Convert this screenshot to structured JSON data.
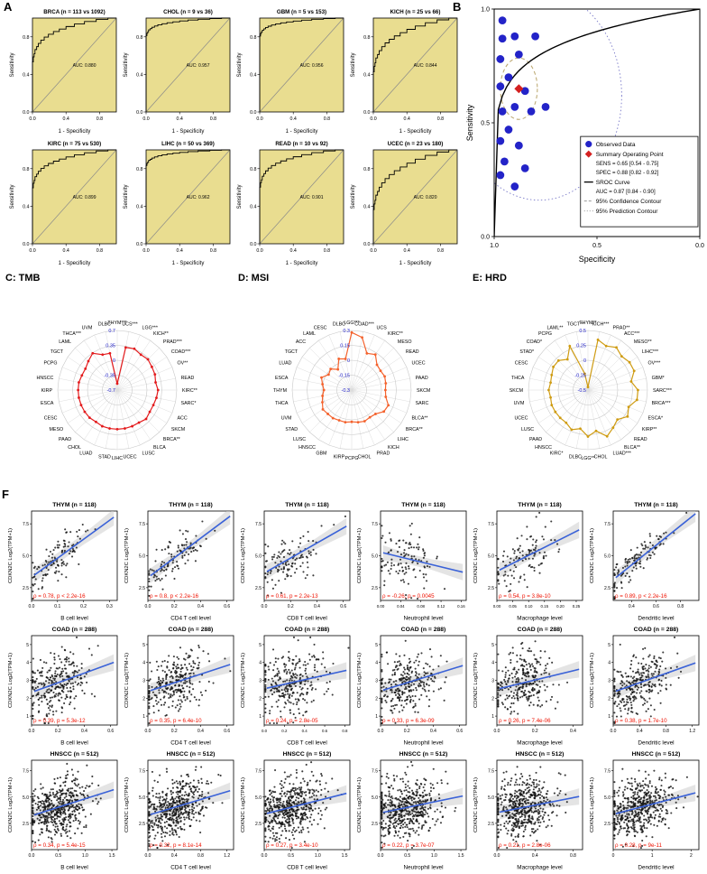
{
  "panels": {
    "a_label": "A",
    "b_label": "B",
    "f_label": "F",
    "c_title": "C: TMB",
    "d_title": "D: MSI",
    "e_title": "E: HRD"
  },
  "chart_data": [
    {
      "id": "roc_grid",
      "type": "line",
      "variant": "roc-grid",
      "xlabel": "1 - Specificity",
      "ylabel": "Sensitivity",
      "ticks": [
        0,
        0.4,
        0.8
      ],
      "tick_labels": [
        "0.0",
        "0.4",
        "0.8"
      ],
      "fill_color": "#e9dd90",
      "curve_color": "#000000",
      "plots": [
        {
          "title": "BRCA (n = 113 vs 1092)",
          "auc": 0.88,
          "auc_label": "AUC: 0.880"
        },
        {
          "title": "CHOL (n = 9 vs 36)",
          "auc": 0.957,
          "auc_label": "AUC: 0.957"
        },
        {
          "title": "GBM (n = 5 vs 153)",
          "auc": 0.956,
          "auc_label": "AUC: 0.956"
        },
        {
          "title": "KICH (n = 25 vs 66)",
          "auc": 0.844,
          "auc_label": "AUC: 0.844"
        },
        {
          "title": "KIRC (n = 75 vs 530)",
          "auc": 0.899,
          "auc_label": "AUC: 0.899"
        },
        {
          "title": "LIHC (n = 50 vs 369)",
          "auc": 0.962,
          "auc_label": "AUC: 0.962"
        },
        {
          "title": "READ (n = 10 vs 92)",
          "auc": 0.901,
          "auc_label": "AUC: 0.901"
        },
        {
          "title": "UCEC (n = 23 vs 180)",
          "auc": 0.82,
          "auc_label": "AUC: 0.820"
        }
      ]
    },
    {
      "id": "sroc",
      "type": "scatter",
      "variant": "sroc",
      "xlabel": "Specificity",
      "ylabel": "Sensitivity",
      "xticks": [
        1.0,
        0.5,
        0.0
      ],
      "xtick_labels": [
        "1.0",
        "0.5",
        "0.0"
      ],
      "yticks": [
        0.0,
        0.5,
        1.0
      ],
      "ytick_labels": [
        "0.0",
        "0.5",
        "1.0"
      ],
      "curve_auc": 0.87,
      "summary_point": {
        "specificity": 0.88,
        "sensitivity": 0.65
      },
      "points": [
        [
          0.96,
          0.95
        ],
        [
          0.9,
          0.88
        ],
        [
          0.96,
          0.87
        ],
        [
          0.88,
          0.8
        ],
        [
          0.97,
          0.78
        ],
        [
          0.8,
          0.88
        ],
        [
          0.93,
          0.7
        ],
        [
          0.97,
          0.66
        ],
        [
          0.85,
          0.64
        ],
        [
          0.9,
          0.57
        ],
        [
          0.96,
          0.55
        ],
        [
          0.82,
          0.55
        ],
        [
          0.75,
          0.57
        ],
        [
          0.93,
          0.47
        ],
        [
          0.97,
          0.42
        ],
        [
          0.88,
          0.4
        ],
        [
          0.95,
          0.33
        ],
        [
          0.97,
          0.27
        ],
        [
          0.9,
          0.22
        ],
        [
          0.85,
          0.3
        ]
      ],
      "point_color": "#2323c8",
      "summary_color": "#d42020",
      "legend": {
        "observed": "Observed Data",
        "summary": "Summary Operating Point",
        "sens_line": "SENS = 0.65 [0.54 - 0.75]",
        "spec_line": "SPEC = 0.88 [0.82 - 0.92]",
        "sroc": "SROC Curve",
        "auc_line": "AUC = 0.87 [0.84 - 0.90]",
        "conf": "95% Confidence Contour",
        "pred": "95% Prediction Contour"
      }
    },
    {
      "id": "radar_tmb",
      "type": "line",
      "variant": "radar",
      "title": "C: TMB",
      "color": "#e31a1c",
      "range": [
        -0.7,
        0.7
      ],
      "tick_labels": [
        "0.7",
        "0.35",
        "0",
        "-0.35",
        "-0.7"
      ],
      "categories": [
        "THYM***",
        "UCS***",
        "LGG***",
        "KICH**",
        "PRAD***",
        "COAD***",
        "OV**",
        "READ",
        "KIRC**",
        "SARC*",
        "ACC",
        "SKCM",
        "BRCA**",
        "BLCA",
        "LUSC",
        "UCEC",
        "LIHC",
        "STAD",
        "LUAD",
        "CHOL",
        "PAAD",
        "MESO",
        "CESC",
        "ESCA",
        "KIRP",
        "HNSCC",
        "PCPG",
        "TGCT",
        "LAML",
        "THCA***",
        "UVM",
        "DLBC"
      ],
      "values": [
        -0.55,
        0.32,
        0.35,
        0.3,
        0.32,
        0.28,
        0.26,
        0.22,
        0.26,
        0.24,
        0.22,
        0.22,
        0.26,
        0.22,
        0.22,
        0.22,
        0.22,
        0.22,
        0.22,
        0.2,
        0.22,
        0.22,
        0.22,
        0.22,
        0.22,
        0.22,
        0.2,
        0.2,
        0.26,
        0.34,
        0.2,
        0.18
      ]
    },
    {
      "id": "radar_msi",
      "type": "line",
      "variant": "radar",
      "title": "D: MSI",
      "color": "#f4622d",
      "range": [
        -0.3,
        0.3
      ],
      "tick_labels": [
        "0.3",
        "0.15",
        "0",
        "-0.15",
        "-0.3"
      ],
      "categories": [
        "LGG***",
        "COAD***",
        "UCS",
        "KIRC**",
        "MESO",
        "READ",
        "UCEC",
        "PAAD",
        "SKCM",
        "SARC",
        "BLCA**",
        "BRCA**",
        "LIHC",
        "KICH",
        "PRAD",
        "CHOL",
        "PCPG",
        "KIRP",
        "GBM",
        "HNSCC",
        "LUSC",
        "STAD",
        "UVM",
        "THCA",
        "THYM",
        "ESCA",
        "LUAD",
        "TGCT",
        "ACC",
        "LAML",
        "CESC",
        "DLBC"
      ],
      "values": [
        0.28,
        0.24,
        0.1,
        0.13,
        0.06,
        0.05,
        0.06,
        0.05,
        0.04,
        0.05,
        0.1,
        0.09,
        0.04,
        0.03,
        0.04,
        0.03,
        0.02,
        0.03,
        0.03,
        0.04,
        0.04,
        0.05,
        0.02,
        0.0,
        -0.02,
        0.0,
        0.03,
        -0.02,
        0.0,
        -0.05,
        0.04,
        0.02
      ]
    },
    {
      "id": "radar_hrd",
      "type": "line",
      "variant": "radar",
      "title": "E: HRD",
      "color": "#cf9c13",
      "range": [
        -0.5,
        0.5
      ],
      "tick_labels": [
        "0.5",
        "0.25",
        "0",
        "-0.25",
        "-0.5"
      ],
      "categories": [
        "THYM**",
        "KICH***",
        "PRAD**",
        "ACC***",
        "MESO**",
        "LIHC***",
        "OV***",
        "GBM*",
        "SARC***",
        "BRCA***",
        "ESCA*",
        "KIRP**",
        "READ",
        "BLCA**",
        "LUAD***",
        "CHOL",
        "LGG**",
        "DLBC",
        "KIRC*",
        "HNSCC",
        "PAAD",
        "LUSC",
        "UCEC",
        "UVM",
        "SKCM",
        "THCA",
        "CESC",
        "STAD*",
        "COAD*",
        "PCPG",
        "LAML**",
        "TGCT**"
      ],
      "values": [
        -0.45,
        0.36,
        0.3,
        0.36,
        0.3,
        0.34,
        0.34,
        0.24,
        0.34,
        0.34,
        0.24,
        0.3,
        0.2,
        0.26,
        0.34,
        0.2,
        0.28,
        0.16,
        0.22,
        0.16,
        0.16,
        0.16,
        0.16,
        0.14,
        0.16,
        0.14,
        0.16,
        0.2,
        0.2,
        0.12,
        0.3,
        -0.22
      ]
    },
    {
      "id": "immune_grid",
      "type": "scatter",
      "variant": "scatter-grid",
      "ylabel": "CDKN2C Log2(TPM+1)",
      "point_color": "#111111",
      "line_color": "#3a62d8",
      "stat_color": "#ee1100",
      "rows": [
        {
          "title": "THYM (n = 118)",
          "n": 118,
          "yticks": [
            2.5,
            5.0,
            7.5
          ],
          "ytick_labels": [
            "2.5",
            "5.0",
            "7.5"
          ],
          "yrange": [
            1.5,
            8.5
          ],
          "cells": [
            {
              "xlabel": "B cell level",
              "xticks": [
                0.0,
                0.1,
                0.2,
                0.3
              ],
              "xtick_labels": [
                "0.0",
                "0.1",
                "0.2",
                "0.3"
              ],
              "xrange": [
                0,
                0.33
              ],
              "rho": 0.78,
              "stat": "ρ = 0.78, p < 2.2e-16"
            },
            {
              "xlabel": "CD4 T cell level",
              "xticks": [
                0.0,
                0.2,
                0.4,
                0.6
              ],
              "xtick_labels": [
                "0.0",
                "0.2",
                "0.4",
                "0.6"
              ],
              "xrange": [
                0,
                0.65
              ],
              "rho": 0.8,
              "stat": "ρ = 0.8, p < 2.2e-16"
            },
            {
              "xlabel": "CD8 T cell level",
              "xticks": [
                0.0,
                0.2,
                0.4,
                0.6
              ],
              "xtick_labels": [
                "0.0",
                "0.2",
                "0.4",
                "0.6"
              ],
              "xrange": [
                0,
                0.65
              ],
              "rho": 0.61,
              "stat": "ρ = 0.61, p = 2.2e-13"
            },
            {
              "xlabel": "Neutrophil level",
              "xticks": [
                0.0,
                0.04,
                0.08,
                0.12,
                0.16
              ],
              "xtick_labels": [
                "0.00",
                "0.04",
                "0.08",
                "0.12",
                "0.16"
              ],
              "xrange": [
                0,
                0.17
              ],
              "rho": -0.26,
              "stat": "ρ = -0.26, p = 0.0045"
            },
            {
              "xlabel": "Macrophage level",
              "xticks": [
                0.0,
                0.05,
                0.1,
                0.15,
                0.2,
                0.25
              ],
              "xtick_labels": [
                "0.00",
                "0.05",
                "0.10",
                "0.15",
                "0.20",
                "0.25"
              ],
              "xrange": [
                0,
                0.27
              ],
              "rho": 0.54,
              "stat": "ρ = 0.54, p = 3.8e-10"
            },
            {
              "xlabel": "Dendritic level",
              "xticks": [
                0.4,
                0.6,
                0.8
              ],
              "xtick_labels": [
                "0.4",
                "0.6",
                "0.8"
              ],
              "xrange": [
                0.25,
                0.95
              ],
              "rho": 0.89,
              "stat": "ρ = 0.89, p < 2.2e-16"
            }
          ]
        },
        {
          "title": "COAD (n = 288)",
          "n": 288,
          "yticks": [
            1,
            2,
            3,
            4,
            5
          ],
          "ytick_labels": [
            "1",
            "2",
            "3",
            "4",
            "5"
          ],
          "yrange": [
            0.5,
            5.5
          ],
          "cells": [
            {
              "xlabel": "B cell level",
              "xticks": [
                0.0,
                0.2,
                0.4,
                0.6
              ],
              "xtick_labels": [
                "0.0",
                "0.2",
                "0.4",
                "0.6"
              ],
              "xrange": [
                0,
                0.65
              ],
              "rho": 0.39,
              "stat": "ρ = 0.39, p = 5.3e-12"
            },
            {
              "xlabel": "CD4 T cell level",
              "xticks": [
                0.0,
                0.2,
                0.4,
                0.6
              ],
              "xtick_labels": [
                "0.0",
                "0.2",
                "0.4",
                "0.6"
              ],
              "xrange": [
                0,
                0.65
              ],
              "rho": 0.35,
              "stat": "ρ = 0.35, p = 6.4e-10"
            },
            {
              "xlabel": "CD8 T cell level",
              "xticks": [
                0.0,
                0.2,
                0.4,
                0.6,
                0.8
              ],
              "xtick_labels": [
                "0.0",
                "0.2",
                "0.4",
                "0.6",
                "0.8"
              ],
              "xrange": [
                0,
                0.85
              ],
              "rho": 0.24,
              "stat": "ρ = 0.24, p = 2.8e-05"
            },
            {
              "xlabel": "Neutrophil level",
              "xticks": [
                0.0,
                0.2,
                0.4,
                0.6
              ],
              "xtick_labels": [
                "0.0",
                "0.2",
                "0.4",
                "0.6"
              ],
              "xrange": [
                0,
                0.65
              ],
              "rho": 0.33,
              "stat": "ρ = 0.33, p = 6.3e-09"
            },
            {
              "xlabel": "Macrophage level",
              "xticks": [
                0.0,
                0.2,
                0.4
              ],
              "xtick_labels": [
                "0.0",
                "0.2",
                "0.4"
              ],
              "xrange": [
                0,
                0.45
              ],
              "rho": 0.26,
              "stat": "ρ = 0.26, p = 7.4e-06"
            },
            {
              "xlabel": "Dendritic level",
              "xticks": [
                0.0,
                0.4,
                0.8,
                1.2
              ],
              "xtick_labels": [
                "0.0",
                "0.4",
                "0.8",
                "1.2"
              ],
              "xrange": [
                0,
                1.3
              ],
              "rho": 0.38,
              "stat": "ρ = 0.38, p = 1.7e-10"
            }
          ]
        },
        {
          "title": "HNSCC (n = 512)",
          "n": 512,
          "yticks": [
            2.5,
            5.0,
            7.5
          ],
          "ytick_labels": [
            "2.5",
            "5.0",
            "7.5"
          ],
          "yrange": [
            0,
            8.5
          ],
          "cells": [
            {
              "xlabel": "B cell level",
              "xticks": [
                0.0,
                0.5,
                1.0,
                1.5
              ],
              "xtick_labels": [
                "0.0",
                "0.5",
                "1.0",
                "1.5"
              ],
              "xrange": [
                0,
                1.6
              ],
              "rho": 0.34,
              "stat": "ρ = 0.34, p = 5.4e-15"
            },
            {
              "xlabel": "CD4 T cell level",
              "xticks": [
                0.0,
                0.4,
                0.8,
                1.2
              ],
              "xtick_labels": [
                "0.0",
                "0.4",
                "0.8",
                "1.2"
              ],
              "xrange": [
                0,
                1.3
              ],
              "rho": 0.32,
              "stat": "ρ = 0.32, p = 8.1e-14"
            },
            {
              "xlabel": "CD8 T cell level",
              "xticks": [
                0.0,
                0.5,
                1.0,
                1.5
              ],
              "xtick_labels": [
                "0.0",
                "0.5",
                "1.0",
                "1.5"
              ],
              "xrange": [
                0,
                1.6
              ],
              "rho": 0.27,
              "stat": "ρ = 0.27, p = 3.4e-10"
            },
            {
              "xlabel": "Neutrophil level",
              "xticks": [
                0.0,
                0.5,
                1.0,
                1.5
              ],
              "xtick_labels": [
                "0.0",
                "0.5",
                "1.0",
                "1.5"
              ],
              "xrange": [
                0,
                1.6
              ],
              "rho": 0.22,
              "stat": "ρ = 0.22, p = 3.7e-07"
            },
            {
              "xlabel": "Macrophage level",
              "xticks": [
                0.0,
                0.4,
                0.8
              ],
              "xtick_labels": [
                "0.0",
                "0.4",
                "0.8"
              ],
              "xrange": [
                0,
                0.9
              ],
              "rho": 0.21,
              "stat": "ρ = 0.21, p = 2.8e-06"
            },
            {
              "xlabel": "Dendritic level",
              "xticks": [
                0,
                1,
                2
              ],
              "xtick_labels": [
                "0",
                "1",
                "2"
              ],
              "xrange": [
                0,
                2.2
              ],
              "rho": 0.28,
              "stat": "ρ = 0.28, p = 9e-11"
            }
          ]
        }
      ]
    }
  ]
}
